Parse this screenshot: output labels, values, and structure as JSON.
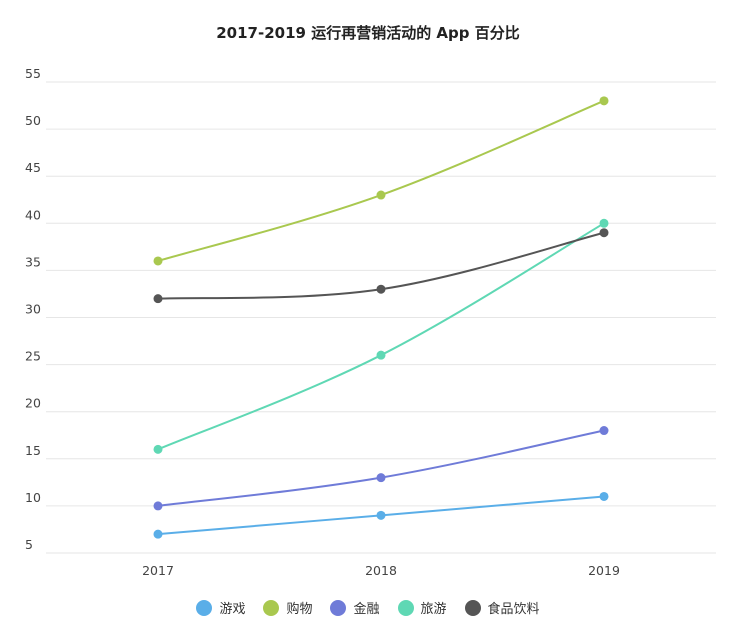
{
  "chart_data": {
    "type": "line",
    "title": "2017-2019 运行再营销活动的 App 百分比",
    "categories": [
      "2017",
      "2018",
      "2019"
    ],
    "ylim": [
      5,
      55
    ],
    "yticks": [
      5,
      10,
      15,
      20,
      25,
      30,
      35,
      40,
      45,
      50,
      55
    ],
    "grid": true,
    "legend_position": "bottom",
    "series": [
      {
        "name": "游戏",
        "color": "#5aaee8",
        "values": [
          7,
          9,
          11
        ]
      },
      {
        "name": "购物",
        "color": "#a9c84f",
        "values": [
          36,
          43,
          53
        ]
      },
      {
        "name": "金融",
        "color": "#6f7bd8",
        "values": [
          10,
          13,
          18
        ]
      },
      {
        "name": "旅游",
        "color": "#5fd8b4",
        "values": [
          16,
          26,
          40
        ]
      },
      {
        "name": "食品饮料",
        "color": "#555555",
        "values": [
          32,
          33,
          39
        ]
      }
    ]
  }
}
